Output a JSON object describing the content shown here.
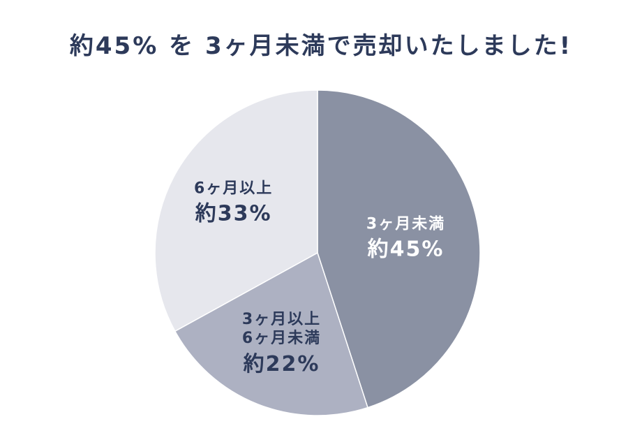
{
  "chart_data": {
    "type": "pie",
    "title": "約45% を 3ヶ月未満で売却いたしました!",
    "categories": [
      "3ヶ月未満",
      "3ヶ月以上\n6ヶ月未満",
      "6ヶ月以上"
    ],
    "values": [
      45,
      22,
      33
    ],
    "value_labels": [
      "約45%",
      "約22%",
      "約33%"
    ],
    "colors": [
      "#8a91a3",
      "#adb1c2",
      "#e6e7ed"
    ],
    "label_colors": [
      "#ffffff",
      "#2d3a5a",
      "#2d3a5a"
    ]
  }
}
